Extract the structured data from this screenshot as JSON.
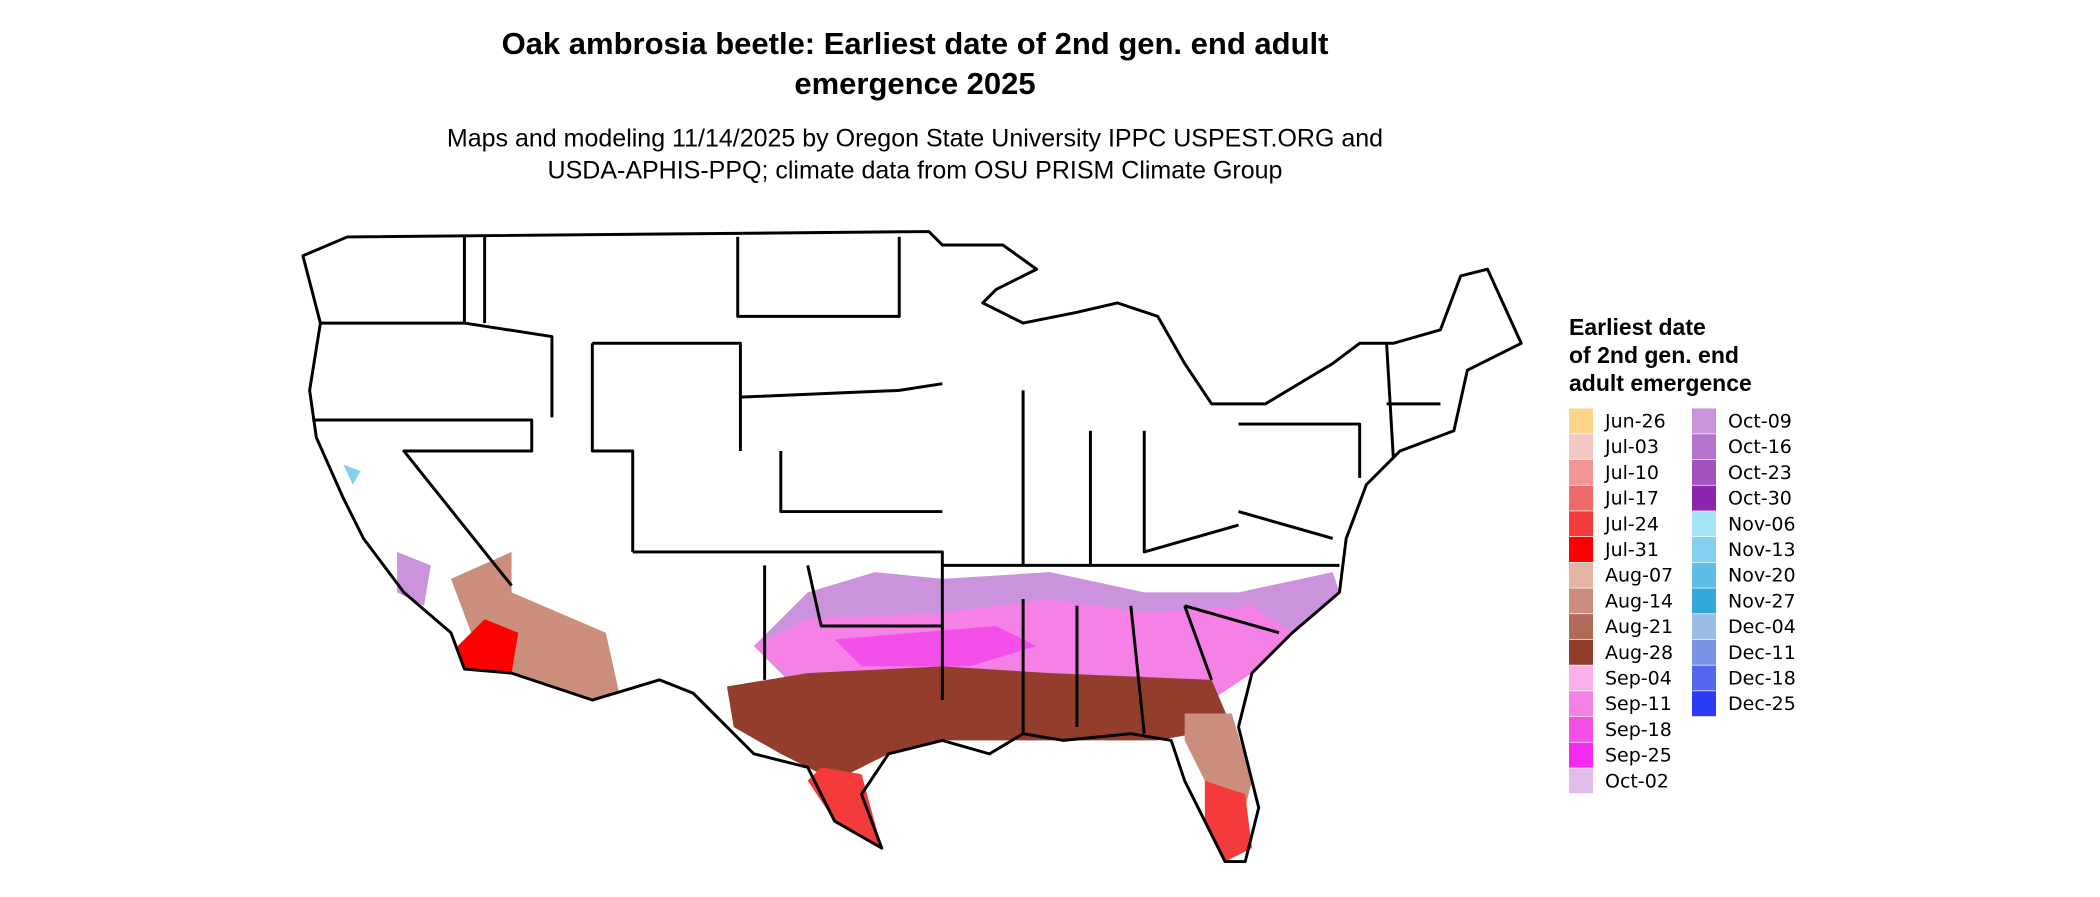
{
  "map": {
    "title": [
      "Oak ambrosia beetle: Earliest date of 2nd gen. end adult",
      "emergence 2025"
    ],
    "subtitle": [
      "Maps and modeling 11/14/2025 by Oregon State University IPPC USPEST.ORG and",
      "USDA-APHIS-PPQ; climate data from OSU PRISM Climate Group"
    ],
    "legend": {
      "title": [
        "Earliest date",
        "of 2nd gen. end",
        "adult emergence"
      ],
      "items": [
        {
          "label": "Jun-26",
          "color": "#fdd38a"
        },
        {
          "label": "Jul-03",
          "color": "#f4c7c7"
        },
        {
          "label": "Jul-10",
          "color": "#f19797"
        },
        {
          "label": "Jul-17",
          "color": "#ee6a6a"
        },
        {
          "label": "Jul-24",
          "color": "#f33b3b"
        },
        {
          "label": "Jul-31",
          "color": "#ff0000"
        },
        {
          "label": "Aug-07",
          "color": "#e4b4a4"
        },
        {
          "label": "Aug-14",
          "color": "#cc8e7c"
        },
        {
          "label": "Aug-21",
          "color": "#b06a58"
        },
        {
          "label": "Aug-28",
          "color": "#933d2c"
        },
        {
          "label": "Sep-04",
          "color": "#f9b0e6"
        },
        {
          "label": "Sep-11",
          "color": "#f580e6"
        },
        {
          "label": "Sep-18",
          "color": "#f44fe9"
        },
        {
          "label": "Sep-25",
          "color": "#f52af2"
        },
        {
          "label": "Oct-02",
          "color": "#dfbde8"
        },
        {
          "label": "Oct-09",
          "color": "#ca93dc"
        },
        {
          "label": "Oct-16",
          "color": "#b674cc"
        },
        {
          "label": "Oct-23",
          "color": "#a254c0"
        },
        {
          "label": "Oct-30",
          "color": "#8b24ae"
        },
        {
          "label": "Nov-06",
          "color": "#a8e4f8"
        },
        {
          "label": "Nov-13",
          "color": "#85d0ee"
        },
        {
          "label": "Nov-20",
          "color": "#5dbde6"
        },
        {
          "label": "Nov-27",
          "color": "#34a6d8"
        },
        {
          "label": "Dec-04",
          "color": "#9bbce4"
        },
        {
          "label": "Dec-11",
          "color": "#7892e4"
        },
        {
          "label": "Dec-18",
          "color": "#5566ee"
        },
        {
          "label": "Dec-25",
          "color": "#2b3af5"
        }
      ]
    }
  }
}
